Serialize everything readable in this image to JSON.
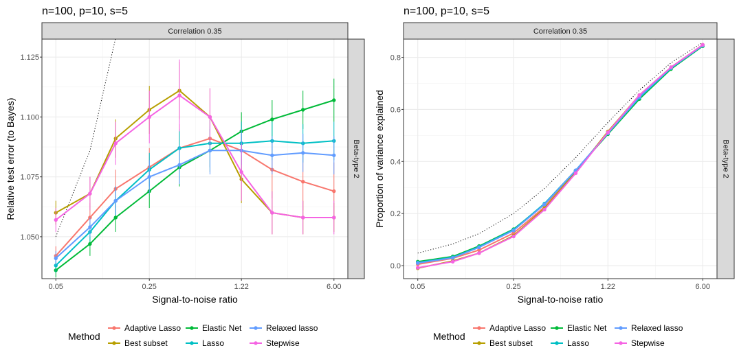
{
  "chart_data": [
    {
      "type": "line",
      "title": "n=100, p=10, s=5",
      "strip_top": "Correlation 0.35",
      "strip_right": "Beta-type 2",
      "xlabel": "Signal-to-noise ratio",
      "ylabel": "Relative test error (to Bayes)",
      "x_scale": "log",
      "x": [
        0.05,
        0.09,
        0.14,
        0.25,
        0.42,
        0.71,
        1.22,
        2.07,
        3.52,
        6.0
      ],
      "x_ticks": [
        "0.05",
        "0.25",
        "1.22",
        "6.00"
      ],
      "y_ticks": [
        "1.050",
        "1.075",
        "1.100",
        "1.125"
      ],
      "ylim": [
        1.0325,
        1.1325
      ],
      "grid": true,
      "series": [
        {
          "name": "Adaptive Lasso",
          "color": "#F8766D",
          "values": [
            1.042,
            1.058,
            1.07,
            1.079,
            1.087,
            1.091,
            1.086,
            1.078,
            1.073,
            1.069
          ],
          "errors": [
            0.004,
            0.006,
            0.008,
            0.008,
            0.01,
            0.012,
            0.012,
            0.012,
            0.012,
            0.012
          ]
        },
        {
          "name": "Best subset",
          "color": "#B79F00",
          "values": [
            1.06,
            1.068,
            1.091,
            1.103,
            1.111,
            1.1,
            1.074,
            1.06,
            1.058,
            1.058
          ],
          "errors": [
            0.005,
            0.007,
            0.008,
            0.01,
            0.012,
            0.012,
            0.01,
            0.009,
            0.007,
            0.006
          ]
        },
        {
          "name": "Elastic Net",
          "color": "#00BA38",
          "values": [
            1.036,
            1.047,
            1.058,
            1.069,
            1.079,
            1.086,
            1.094,
            1.099,
            1.103,
            1.107
          ],
          "errors": [
            0.003,
            0.005,
            0.006,
            0.007,
            0.008,
            0.009,
            0.008,
            0.008,
            0.008,
            0.009
          ]
        },
        {
          "name": "Lasso",
          "color": "#00BFC4",
          "values": [
            1.038,
            1.052,
            1.065,
            1.078,
            1.087,
            1.089,
            1.089,
            1.09,
            1.089,
            1.09
          ],
          "errors": [
            0.003,
            0.004,
            0.006,
            0.007,
            0.008,
            0.01,
            0.009,
            0.008,
            0.008,
            0.008
          ]
        },
        {
          "name": "Relaxed lasso",
          "color": "#619CFF",
          "values": [
            1.041,
            1.054,
            1.065,
            1.075,
            1.08,
            1.086,
            1.086,
            1.084,
            1.085,
            1.084
          ],
          "errors": [
            0.003,
            0.004,
            0.006,
            0.007,
            0.008,
            0.01,
            0.009,
            0.008,
            0.008,
            0.008
          ]
        },
        {
          "name": "Stepwise",
          "color": "#F564E3",
          "values": [
            1.057,
            1.068,
            1.089,
            1.1,
            1.109,
            1.1,
            1.077,
            1.06,
            1.058,
            1.058
          ],
          "errors": [
            0.005,
            0.007,
            0.009,
            0.011,
            0.015,
            0.012,
            0.012,
            0.009,
            0.007,
            0.007
          ]
        }
      ],
      "reference": {
        "style": "dotted",
        "x": [
          0.05,
          0.09,
          0.14
        ],
        "values": [
          1.05,
          1.086,
          1.133
        ]
      }
    },
    {
      "type": "line",
      "title": "n=100, p=10, s=5",
      "strip_top": "Correlation 0.35",
      "strip_right": "Beta-type 2",
      "xlabel": "Signal-to-noise ratio",
      "ylabel": "Proportion of variance explained",
      "x_scale": "log",
      "x": [
        0.05,
        0.09,
        0.14,
        0.25,
        0.42,
        0.71,
        1.22,
        2.07,
        3.52,
        6.0
      ],
      "x_ticks": [
        "0.05",
        "0.25",
        "1.22",
        "6.00"
      ],
      "y_ticks": [
        "0.0",
        "0.2",
        "0.4",
        "0.6",
        "0.8"
      ],
      "ylim": [
        -0.05,
        0.87
      ],
      "grid": true,
      "series": [
        {
          "name": "Adaptive Lasso",
          "color": "#F8766D",
          "values": [
            0.005,
            0.028,
            0.06,
            0.125,
            0.225,
            0.365,
            0.51,
            0.65,
            0.758,
            0.845
          ]
        },
        {
          "name": "Best subset",
          "color": "#B79F00",
          "values": [
            -0.01,
            0.018,
            0.048,
            0.115,
            0.22,
            0.36,
            0.515,
            0.655,
            0.762,
            0.848
          ]
        },
        {
          "name": "Elastic Net",
          "color": "#00BA38",
          "values": [
            0.015,
            0.035,
            0.075,
            0.14,
            0.235,
            0.365,
            0.505,
            0.64,
            0.755,
            0.843
          ]
        },
        {
          "name": "Lasso",
          "color": "#00BFC4",
          "values": [
            0.012,
            0.032,
            0.072,
            0.138,
            0.238,
            0.366,
            0.508,
            0.645,
            0.758,
            0.845
          ]
        },
        {
          "name": "Relaxed lasso",
          "color": "#619CFF",
          "values": [
            0.01,
            0.03,
            0.07,
            0.135,
            0.235,
            0.366,
            0.508,
            0.648,
            0.76,
            0.846
          ]
        },
        {
          "name": "Stepwise",
          "color": "#F564E3",
          "values": [
            -0.008,
            0.015,
            0.048,
            0.112,
            0.215,
            0.355,
            0.512,
            0.655,
            0.762,
            0.848
          ]
        }
      ],
      "reference": {
        "style": "dotted",
        "x": [
          0.05,
          0.09,
          0.14,
          0.25,
          0.42,
          0.71,
          1.22,
          2.07,
          3.52,
          6.0
        ],
        "values": [
          0.048,
          0.083,
          0.123,
          0.2,
          0.296,
          0.415,
          0.55,
          0.674,
          0.779,
          0.857
        ]
      }
    }
  ],
  "legend": {
    "title": "Method",
    "items": [
      "Adaptive Lasso",
      "Best subset",
      "Elastic Net",
      "Lasso",
      "Relaxed lasso",
      "Stepwise"
    ]
  }
}
